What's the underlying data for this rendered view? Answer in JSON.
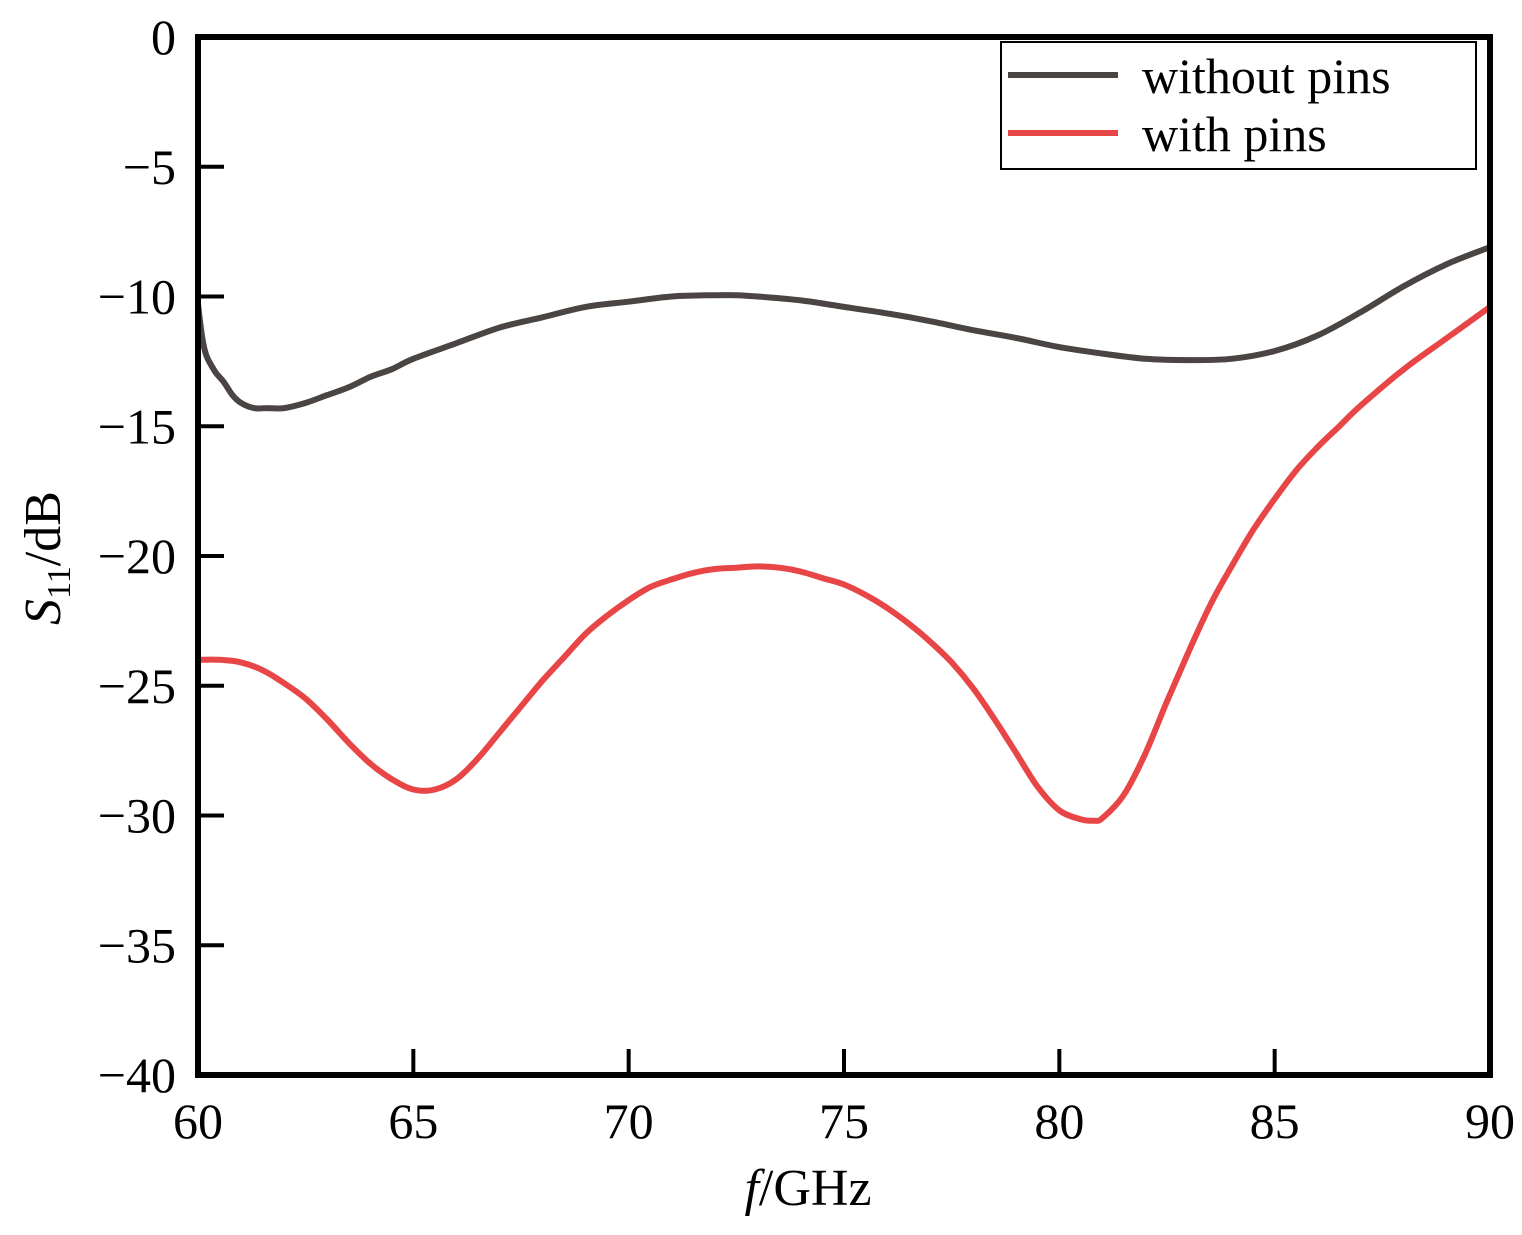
{
  "chart_data": {
    "type": "line",
    "title": "",
    "xlabel": {
      "italic": "f",
      "rest": "/GHz"
    },
    "ylabel": {
      "italic": "S",
      "sub": "11",
      "rest": "/dB"
    },
    "xlim": [
      60,
      90
    ],
    "ylim": [
      -40,
      0
    ],
    "xticks": [
      60,
      65,
      70,
      75,
      80,
      85,
      90
    ],
    "yticks": [
      0,
      -5,
      -10,
      -15,
      -20,
      -25,
      -30,
      -35,
      -40
    ],
    "xtick_labels": [
      "60",
      "65",
      "70",
      "75",
      "80",
      "85",
      "90"
    ],
    "ytick_labels": [
      "0",
      "−5",
      "−10",
      "−15",
      "−20",
      "−25",
      "−30",
      "−35",
      "−40"
    ],
    "grid": false,
    "legend_position": "top-right",
    "series": [
      {
        "name": "without pins",
        "color": "#4a4443",
        "x": [
          60.0,
          60.1,
          60.2,
          60.4,
          60.6,
          60.8,
          61.0,
          61.3,
          61.6,
          62.0,
          62.5,
          63.0,
          63.5,
          64.0,
          64.5,
          65.0,
          66.0,
          67.0,
          68.0,
          69.0,
          70.0,
          71.0,
          72.0,
          72.5,
          73.0,
          74.0,
          75.0,
          76.0,
          77.0,
          78.0,
          79.0,
          80.0,
          81.0,
          82.0,
          83.0,
          84.0,
          85.0,
          86.0,
          87.0,
          88.0,
          89.0,
          90.0
        ],
        "values": [
          -10.3,
          -11.6,
          -12.3,
          -12.9,
          -13.3,
          -13.8,
          -14.1,
          -14.3,
          -14.3,
          -14.3,
          -14.1,
          -13.8,
          -13.5,
          -13.1,
          -12.8,
          -12.4,
          -11.8,
          -11.2,
          -10.8,
          -10.4,
          -10.2,
          -10.0,
          -9.95,
          -9.95,
          -10.0,
          -10.15,
          -10.4,
          -10.65,
          -10.95,
          -11.3,
          -11.6,
          -11.95,
          -12.2,
          -12.4,
          -12.45,
          -12.4,
          -12.1,
          -11.5,
          -10.6,
          -9.6,
          -8.75,
          -8.1
        ]
      },
      {
        "name": "with pins",
        "color": "#e84646",
        "x": [
          60.0,
          60.5,
          61.0,
          61.5,
          62.0,
          62.5,
          63.0,
          63.5,
          64.0,
          64.5,
          65.0,
          65.5,
          66.0,
          66.5,
          67.0,
          67.5,
          68.0,
          68.5,
          69.0,
          69.5,
          70.0,
          70.5,
          71.0,
          71.5,
          72.0,
          72.5,
          73.0,
          73.5,
          74.0,
          74.5,
          75.0,
          75.5,
          76.0,
          76.5,
          77.0,
          77.5,
          78.0,
          78.5,
          79.0,
          79.5,
          80.0,
          80.5,
          80.8,
          81.0,
          81.5,
          82.0,
          82.5,
          83.0,
          83.5,
          84.0,
          84.5,
          85.0,
          85.5,
          86.0,
          86.5,
          87.0,
          88.0,
          89.0,
          90.0
        ],
        "values": [
          -24.0,
          -24.0,
          -24.1,
          -24.4,
          -24.9,
          -25.5,
          -26.3,
          -27.2,
          -28.0,
          -28.6,
          -29.0,
          -29.0,
          -28.6,
          -27.8,
          -26.8,
          -25.8,
          -24.8,
          -23.9,
          -23.0,
          -22.3,
          -21.7,
          -21.2,
          -20.9,
          -20.65,
          -20.5,
          -20.45,
          -20.4,
          -20.45,
          -20.6,
          -20.85,
          -21.1,
          -21.5,
          -22.0,
          -22.6,
          -23.3,
          -24.1,
          -25.1,
          -26.3,
          -27.6,
          -28.9,
          -29.8,
          -30.15,
          -30.2,
          -30.1,
          -29.2,
          -27.6,
          -25.6,
          -23.7,
          -21.9,
          -20.4,
          -19.0,
          -17.8,
          -16.7,
          -15.8,
          -15.0,
          -14.2,
          -12.8,
          -11.6,
          -10.4
        ]
      }
    ]
  }
}
